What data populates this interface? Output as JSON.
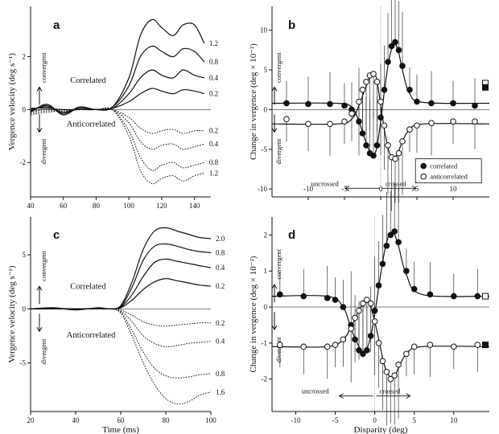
{
  "chart_data": [
    {
      "panel": "a",
      "type": "line",
      "xlabel": "",
      "ylabel": "Vergence velocity (deg s⁻¹)",
      "xlim": [
        40,
        150
      ],
      "ylim": [
        -3.3,
        3.9
      ],
      "xticks": [
        40,
        60,
        80,
        100,
        120,
        140
      ],
      "yticks": [
        -2,
        0,
        2
      ],
      "labels": {
        "correlated": "Correlated",
        "anticorrelated": "Anticorrelated",
        "convergent": "convergent",
        "divergent": "divergent"
      },
      "series": [
        {
          "name": "1.2",
          "group": "correlated",
          "style": "solid",
          "x": [
            40,
            50,
            60,
            70,
            80,
            90,
            100,
            107,
            114,
            120,
            127,
            133,
            140,
            146
          ],
          "y": [
            -0.1,
            0.2,
            -0.2,
            0.1,
            0.0,
            0.1,
            1.2,
            2.8,
            3.4,
            3.1,
            2.8,
            3.2,
            3.2,
            2.5
          ]
        },
        {
          "name": "0.8",
          "group": "correlated",
          "style": "solid",
          "x": [
            40,
            50,
            60,
            70,
            80,
            90,
            100,
            107,
            114,
            120,
            127,
            133,
            140,
            146
          ],
          "y": [
            -0.05,
            0.15,
            -0.15,
            0.1,
            0.0,
            0.1,
            0.9,
            2.0,
            2.4,
            2.2,
            2.0,
            2.3,
            2.2,
            1.8
          ]
        },
        {
          "name": "0.4",
          "group": "correlated",
          "style": "solid",
          "x": [
            40,
            50,
            60,
            70,
            80,
            90,
            100,
            107,
            114,
            120,
            127,
            133,
            140,
            146
          ],
          "y": [
            0.0,
            0.1,
            -0.1,
            0.05,
            0.0,
            0.05,
            0.6,
            1.2,
            1.5,
            1.3,
            1.2,
            1.5,
            1.3,
            1.2
          ]
        },
        {
          "name": "0.2",
          "group": "correlated",
          "style": "solid",
          "x": [
            40,
            50,
            60,
            70,
            80,
            90,
            100,
            107,
            114,
            120,
            127,
            133,
            140,
            146
          ],
          "y": [
            0.05,
            0.05,
            0.0,
            0.0,
            0.0,
            0.05,
            0.3,
            0.6,
            0.8,
            0.7,
            0.6,
            0.75,
            0.7,
            0.6
          ]
        },
        {
          "name": "0.2",
          "group": "anticorrelated",
          "style": "dotted",
          "x": [
            40,
            50,
            60,
            70,
            80,
            90,
            100,
            107,
            114,
            120,
            127,
            133,
            140,
            146
          ],
          "y": [
            -0.05,
            0.0,
            0.0,
            0.0,
            0.0,
            0.0,
            -0.3,
            -0.7,
            -0.9,
            -0.8,
            -0.75,
            -0.9,
            -0.8,
            -0.8
          ]
        },
        {
          "name": "0.4",
          "group": "anticorrelated",
          "style": "dotted",
          "x": [
            40,
            50,
            60,
            70,
            80,
            90,
            100,
            107,
            114,
            120,
            127,
            133,
            140,
            146
          ],
          "y": [
            -0.1,
            0.0,
            -0.05,
            0.0,
            0.0,
            0.0,
            -0.5,
            -1.2,
            -1.5,
            -1.35,
            -1.3,
            -1.5,
            -1.4,
            -1.3
          ]
        },
        {
          "name": "0.8",
          "group": "anticorrelated",
          "style": "dotted",
          "x": [
            40,
            50,
            60,
            70,
            80,
            90,
            100,
            107,
            114,
            120,
            127,
            133,
            140,
            146
          ],
          "y": [
            -0.15,
            -0.05,
            -0.05,
            0.0,
            0.0,
            0.0,
            -0.8,
            -1.8,
            -2.3,
            -2.1,
            -2.0,
            -2.2,
            -2.1,
            -2.0
          ]
        },
        {
          "name": "1.2",
          "group": "anticorrelated",
          "style": "dotted",
          "x": [
            40,
            50,
            60,
            70,
            80,
            90,
            100,
            107,
            114,
            120,
            127,
            133,
            140,
            146
          ],
          "y": [
            -0.2,
            -0.1,
            -0.05,
            0.0,
            0.0,
            0.0,
            -1.0,
            -2.3,
            -2.8,
            -2.6,
            -2.5,
            -2.7,
            -2.5,
            -2.4
          ]
        }
      ]
    },
    {
      "panel": "b",
      "type": "scatter",
      "xlabel": "",
      "ylabel": "Change in vergence (deg × 10⁻²)",
      "xlim": [
        -15,
        15
      ],
      "ylim": [
        -11,
        13
      ],
      "xticks": [
        -10,
        -5,
        0,
        5,
        10
      ],
      "yticks": [
        -10,
        -5,
        0,
        5,
        10
      ],
      "legend": [
        "correlated",
        "anticorrelated"
      ],
      "labels": {
        "uncrossed": "uncrossed",
        "crossed": "crossed",
        "convergent": "convergent",
        "divergent": "divergent"
      },
      "series": [
        {
          "name": "correlated",
          "marker": "filled",
          "x": [
            -13,
            -10,
            -7,
            -5,
            -4,
            -3,
            -2.5,
            -2,
            -1.5,
            -1,
            -0.5,
            0,
            0.5,
            1,
            1.5,
            2,
            2.5,
            3,
            4,
            5,
            7,
            10,
            13
          ],
          "y": [
            0.8,
            0.7,
            0.7,
            0.5,
            0,
            -1.5,
            -3,
            -4.5,
            -5.5,
            -5.8,
            -4.5,
            -1,
            2.5,
            6,
            8,
            8.5,
            7.5,
            5.5,
            2.5,
            1,
            0.8,
            0.8,
            0.5
          ]
        },
        {
          "name": "anticorrelated",
          "marker": "open",
          "x": [
            -13,
            -10,
            -7,
            -5,
            -4,
            -3,
            -2.5,
            -2,
            -1.5,
            -1,
            -0.5,
            0,
            0.5,
            1,
            1.5,
            2,
            2.5,
            3,
            4,
            5,
            7,
            10,
            13
          ],
          "y": [
            -1.2,
            -1.8,
            -1.8,
            -1.5,
            -0.5,
            1,
            2.5,
            3.5,
            4.3,
            4.5,
            3.5,
            1,
            -2,
            -4.5,
            -6,
            -6.2,
            -5.5,
            -4,
            -2.5,
            -2,
            -1.7,
            -1.5,
            -1.5
          ]
        }
      ],
      "fit_curves": [
        {
          "name": "correlated fit",
          "x": [
            -15,
            -6,
            -4,
            -3,
            -2,
            -1.2,
            -0.6,
            0,
            0.6,
            1.2,
            1.8,
            2.4,
            3,
            4,
            6,
            15
          ],
          "y": [
            0.8,
            0.8,
            0.3,
            -1.5,
            -4.2,
            -5.7,
            -5,
            -1.5,
            3,
            6.5,
            8.2,
            7.5,
            5,
            2,
            0.9,
            0.8
          ]
        },
        {
          "name": "anticorrelated fit",
          "x": [
            -15,
            -6,
            -4,
            -3,
            -2,
            -1.2,
            -0.6,
            0,
            0.6,
            1.2,
            1.8,
            2.4,
            3,
            4,
            6,
            15
          ],
          "y": [
            -1.8,
            -1.8,
            -1.2,
            0.5,
            3,
            4.5,
            4,
            0.5,
            -3,
            -5.4,
            -6.1,
            -5.4,
            -4,
            -2.5,
            -1.8,
            -1.8
          ]
        }
      ]
    },
    {
      "panel": "c",
      "type": "line",
      "xlabel": "Time (ms)",
      "ylabel": "Vergence velocity (deg s⁻¹)",
      "xlim": [
        20,
        100
      ],
      "ylim": [
        -9.5,
        8.5
      ],
      "xticks": [
        20,
        40,
        60,
        80,
        100
      ],
      "yticks": [
        -5,
        0,
        5
      ],
      "labels": {
        "correlated": "Correlated",
        "anticorrelated": "Anticorrelated",
        "convergent": "convergent",
        "divergent": "divergent"
      },
      "series": [
        {
          "name": "2.0",
          "group": "correlated",
          "style": "solid",
          "x": [
            20,
            30,
            40,
            50,
            55,
            60,
            65,
            70,
            75,
            80,
            85,
            90,
            95,
            100
          ],
          "y": [
            0.0,
            0.1,
            -0.1,
            0.1,
            0.0,
            0.3,
            2.5,
            5.5,
            7.2,
            7.5,
            7.2,
            6.9,
            6.6,
            6.5
          ]
        },
        {
          "name": "0.8",
          "group": "correlated",
          "style": "solid",
          "x": [
            20,
            30,
            40,
            50,
            55,
            60,
            65,
            70,
            75,
            80,
            85,
            90,
            95,
            100
          ],
          "y": [
            0.0,
            0.05,
            -0.05,
            0.05,
            0.0,
            0.2,
            2.0,
            4.5,
            5.8,
            6.0,
            5.8,
            5.5,
            5.3,
            5.2
          ]
        },
        {
          "name": "0.4",
          "group": "correlated",
          "style": "solid",
          "x": [
            20,
            30,
            40,
            50,
            55,
            60,
            65,
            70,
            75,
            80,
            85,
            90,
            95,
            100
          ],
          "y": [
            0.0,
            0.05,
            0.0,
            0.05,
            0.0,
            0.15,
            1.3,
            3.0,
            4.3,
            4.6,
            4.4,
            4.2,
            4.0,
            3.8
          ]
        },
        {
          "name": "0.2",
          "group": "correlated",
          "style": "solid",
          "x": [
            20,
            30,
            40,
            50,
            55,
            60,
            65,
            70,
            75,
            80,
            85,
            90,
            95,
            100
          ],
          "y": [
            0.0,
            0.0,
            0.0,
            0.0,
            0.0,
            0.1,
            0.8,
            1.8,
            2.5,
            2.8,
            2.6,
            2.4,
            2.2,
            2.1
          ]
        },
        {
          "name": "0.2",
          "group": "anticorrelated",
          "style": "dotted",
          "x": [
            20,
            30,
            40,
            50,
            55,
            60,
            65,
            70,
            75,
            80,
            85,
            90,
            95,
            100
          ],
          "y": [
            0.0,
            0.0,
            0.0,
            0.0,
            0.0,
            -0.1,
            -0.6,
            -1.2,
            -1.5,
            -1.6,
            -1.5,
            -1.4,
            -1.3,
            -1.3
          ]
        },
        {
          "name": "0.4",
          "group": "anticorrelated",
          "style": "dotted",
          "x": [
            20,
            30,
            40,
            50,
            55,
            60,
            65,
            70,
            75,
            80,
            85,
            90,
            95,
            100
          ],
          "y": [
            0.0,
            0.0,
            0.0,
            0.0,
            0.0,
            -0.2,
            -1.2,
            -2.5,
            -3.2,
            -3.5,
            -3.4,
            -3.2,
            -3.1,
            -3.0
          ]
        },
        {
          "name": "0.8",
          "group": "anticorrelated",
          "style": "dotted",
          "x": [
            20,
            30,
            40,
            50,
            55,
            60,
            65,
            70,
            75,
            80,
            85,
            90,
            95,
            100
          ],
          "y": [
            0.0,
            0.0,
            0.0,
            0.0,
            0.0,
            -0.3,
            -2.0,
            -4.0,
            -5.5,
            -6.2,
            -6.4,
            -6.3,
            -6.1,
            -6.0
          ]
        },
        {
          "name": "1.6",
          "group": "anticorrelated",
          "style": "dotted",
          "x": [
            20,
            30,
            40,
            50,
            55,
            60,
            65,
            70,
            75,
            80,
            85,
            90,
            95,
            100
          ],
          "y": [
            0.0,
            0.0,
            0.0,
            0.0,
            0.0,
            -0.4,
            -2.5,
            -5.0,
            -7.0,
            -8.3,
            -8.8,
            -8.6,
            -8.0,
            -7.7
          ]
        }
      ]
    },
    {
      "panel": "d",
      "type": "scatter",
      "xlabel": "Disparity (deg)",
      "ylabel": "Change in vergence (deg × 10⁻²)",
      "xlim": [
        -13,
        14.5
      ],
      "ylim": [
        -2.9,
        2.5
      ],
      "xticks": [
        -10,
        -5,
        0,
        5,
        10
      ],
      "yticks": [
        -2,
        -1,
        0,
        1,
        2
      ],
      "labels": {
        "uncrossed": "uncrossed",
        "crossed": "crossed",
        "convergent": "convergent",
        "divergent": "divergent"
      },
      "series": [
        {
          "name": "correlated",
          "marker": "filled",
          "x": [
            -12,
            -9,
            -6,
            -5,
            -4,
            -3,
            -2.5,
            -2,
            -1.5,
            -1,
            -0.5,
            0,
            0.5,
            1,
            1.5,
            2,
            2.5,
            3,
            4,
            5,
            7,
            10,
            13
          ],
          "y": [
            0.35,
            0.3,
            0.25,
            0.2,
            0,
            -0.5,
            -0.9,
            -1.2,
            -1.3,
            -1.2,
            -0.8,
            -0.1,
            0.6,
            1.2,
            1.7,
            2.0,
            2.1,
            1.8,
            1.0,
            0.5,
            0.35,
            0.3,
            0.3
          ]
        },
        {
          "name": "anticorrelated",
          "marker": "open",
          "x": [
            -12,
            -9,
            -6,
            -5,
            -4,
            -3,
            -2.5,
            -2,
            -1.5,
            -1,
            -0.5,
            0,
            0.5,
            1,
            1.5,
            2,
            2.5,
            3,
            4,
            5,
            7,
            10,
            13
          ],
          "y": [
            -1.05,
            -1.1,
            -1.1,
            -1.05,
            -0.9,
            -0.6,
            -0.3,
            -0.1,
            0.1,
            0.2,
            0.1,
            -0.4,
            -1.0,
            -1.5,
            -1.8,
            -2.0,
            -1.9,
            -1.6,
            -1.3,
            -1.1,
            -1.05,
            -1.1,
            -1.05
          ]
        }
      ],
      "fit_curves": [
        {
          "name": "correlated fit",
          "x": [
            -13,
            -6,
            -4,
            -3,
            -2,
            -1.3,
            -0.6,
            0,
            0.6,
            1.2,
            1.8,
            2.4,
            3,
            4,
            6,
            14.5
          ],
          "y": [
            0.3,
            0.3,
            0.0,
            -0.6,
            -1.1,
            -1.25,
            -0.9,
            -0.2,
            0.7,
            1.5,
            2.0,
            2.05,
            1.7,
            0.9,
            0.35,
            0.3
          ]
        },
        {
          "name": "anticorrelated fit",
          "x": [
            -13,
            -6,
            -4,
            -3,
            -2,
            -1.3,
            -0.6,
            0,
            0.6,
            1.2,
            1.8,
            2.4,
            3,
            4,
            6,
            14.5
          ],
          "y": [
            -1.1,
            -1.1,
            -0.9,
            -0.55,
            -0.1,
            0.15,
            0.05,
            -0.4,
            -1.0,
            -1.6,
            -1.9,
            -1.95,
            -1.7,
            -1.3,
            -1.1,
            -1.1
          ]
        }
      ]
    }
  ]
}
